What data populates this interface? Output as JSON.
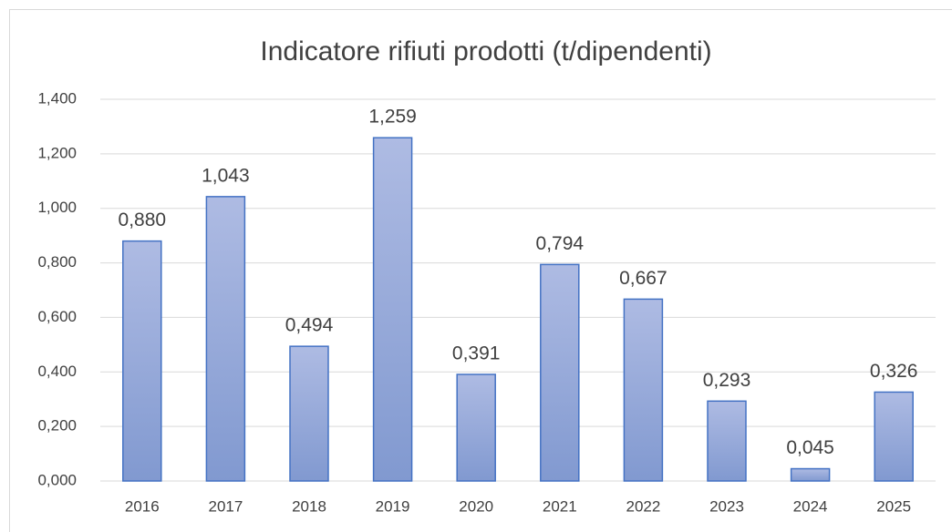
{
  "chart_data": {
    "type": "bar",
    "title": "Indicatore rifiuti prodotti (t/dipendenti)",
    "categories": [
      "2016",
      "2017",
      "2018",
      "2019",
      "2020",
      "2021",
      "2022",
      "2023",
      "2024",
      "2025"
    ],
    "values": [
      0.88,
      1.043,
      0.494,
      1.259,
      0.391,
      0.794,
      0.667,
      0.293,
      0.045,
      0.326
    ],
    "value_labels": [
      "0,880",
      "1,043",
      "0,494",
      "1,259",
      "0,391",
      "0,794",
      "0,667",
      "0,293",
      "0,045",
      "0,326"
    ],
    "color": "#4472c4",
    "ylim": [
      0,
      1.4
    ],
    "yticks": [
      {
        "value": 0,
        "label": "0,000"
      },
      {
        "value": 0.2,
        "label": "0,200"
      },
      {
        "value": 0.4,
        "label": "0,400"
      },
      {
        "value": 0.6,
        "label": "0,600"
      },
      {
        "value": 0.8,
        "label": "0,800"
      },
      {
        "value": 1.0,
        "label": "1,000"
      },
      {
        "value": 1.2,
        "label": "1,200"
      },
      {
        "value": 1.4,
        "label": "1,400"
      }
    ],
    "grid": true
  }
}
